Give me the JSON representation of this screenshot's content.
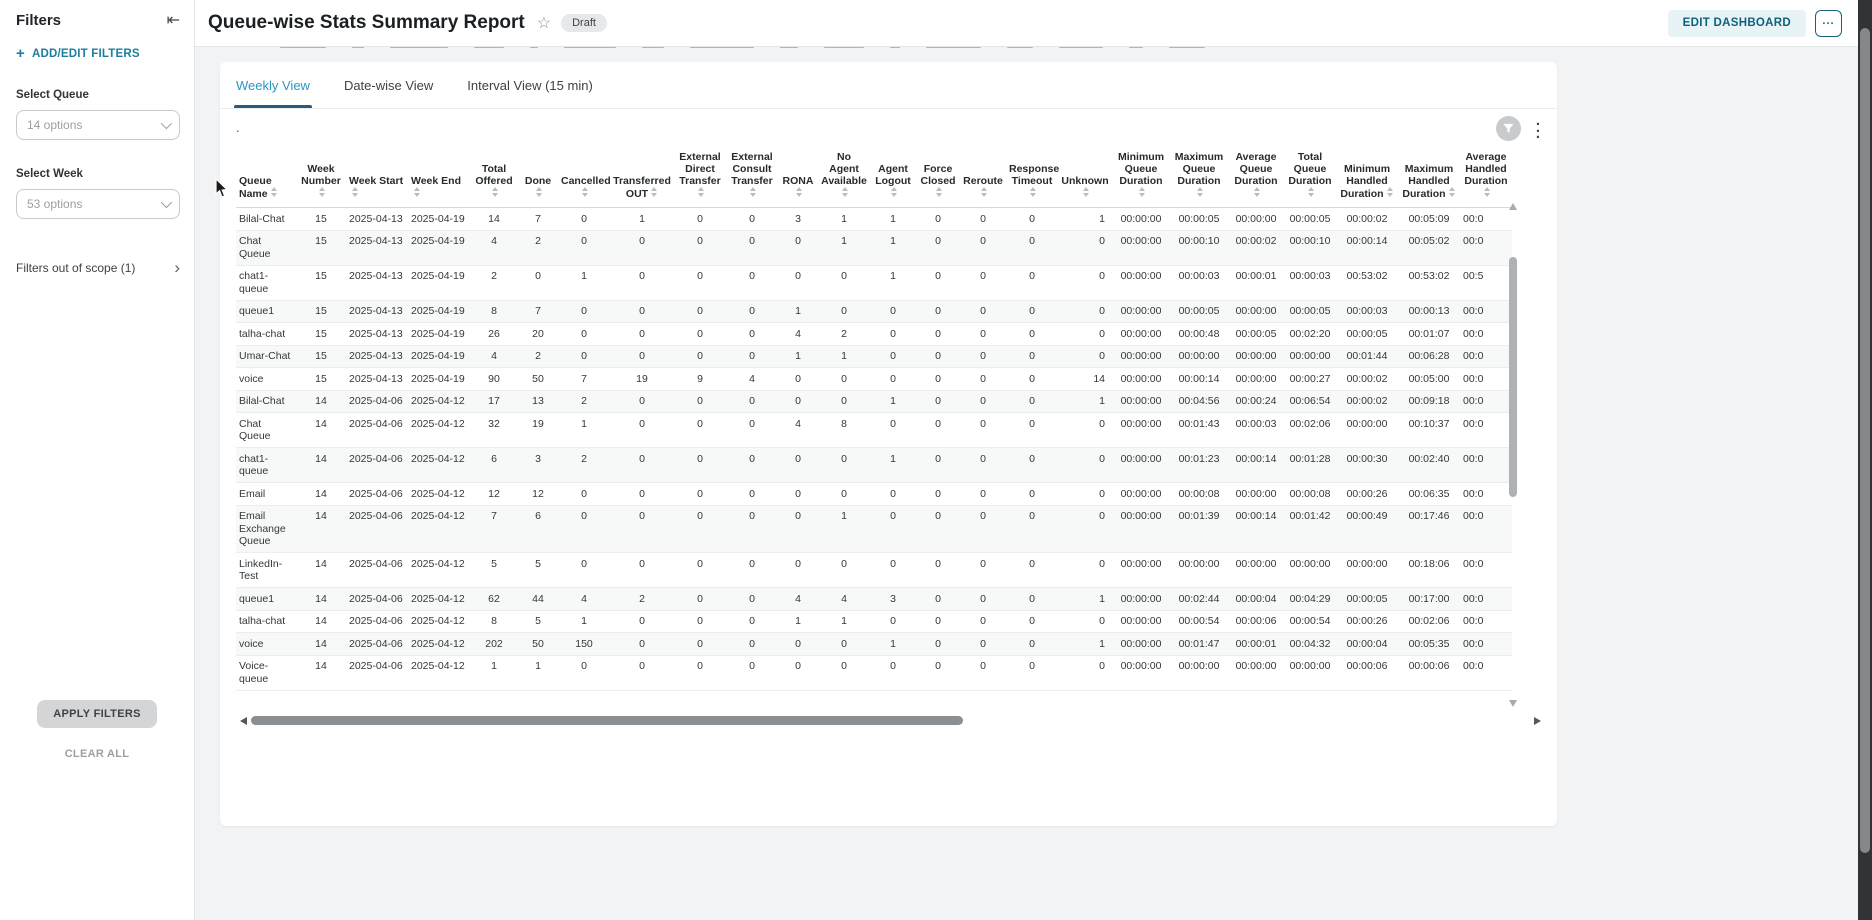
{
  "sidebar": {
    "title": "Filters",
    "add_edit_filters": "ADD/EDIT FILTERS",
    "select_queue_label": "Select Queue",
    "select_queue_value": "14 options",
    "select_week_label": "Select Week",
    "select_week_value": "53 options",
    "out_of_scope": "Filters out of scope (1)",
    "apply": "APPLY FILTERS",
    "clear": "CLEAR ALL"
  },
  "header": {
    "title": "Queue-wise Stats Summary Report",
    "badge": "Draft",
    "edit_button": "EDIT DASHBOARD"
  },
  "tabs": [
    {
      "label": "Weekly View",
      "active": true
    },
    {
      "label": "Date-wise View",
      "active": false
    },
    {
      "label": "Interval View (15 min)",
      "active": false
    }
  ],
  "card": {
    "dot": "."
  },
  "colors": {
    "accent_teal": "#1b7e9f",
    "active_tab": "#2a96c4",
    "active_tab_underline": "#2b5a80",
    "edit_button_bg": "#e8f3f6",
    "edit_button_text": "#0e617c",
    "badge_bg": "#e6e8e9"
  },
  "table": {
    "columns": [
      "Queue Name",
      "Week Number",
      "Week Start",
      "Week End",
      "Total Offered",
      "Done",
      "Cancelled",
      "Transferred OUT",
      "External Direct Transfer",
      "External Consult Transfer",
      "RONA",
      "No Agent Available",
      "Agent Logout",
      "Force Closed",
      "Reroute",
      "Response Timeout",
      "Unknown",
      "Minimum Queue Duration",
      "Maximum Queue Duration",
      "Average Queue Duration",
      "Total Queue Duration",
      "Minimum Handled Duration",
      "Maximum Handled Duration",
      "Average Handled Duration"
    ],
    "rows": [
      [
        "Bilal-Chat",
        15,
        "2025-04-13",
        "2025-04-19",
        14,
        7,
        0,
        1,
        0,
        0,
        3,
        1,
        1,
        0,
        0,
        0,
        1,
        "00:00:00",
        "00:00:05",
        "00:00:00",
        "00:00:05",
        "00:00:02",
        "00:05:09",
        "00:0"
      ],
      [
        "Chat Queue",
        15,
        "2025-04-13",
        "2025-04-19",
        4,
        2,
        0,
        0,
        0,
        0,
        0,
        1,
        1,
        0,
        0,
        0,
        0,
        "00:00:00",
        "00:00:10",
        "00:00:02",
        "00:00:10",
        "00:00:14",
        "00:05:02",
        "00:0"
      ],
      [
        "chat1-queue",
        15,
        "2025-04-13",
        "2025-04-19",
        2,
        0,
        1,
        0,
        0,
        0,
        0,
        0,
        1,
        0,
        0,
        0,
        0,
        "00:00:00",
        "00:00:03",
        "00:00:01",
        "00:00:03",
        "00:53:02",
        "00:53:02",
        "00:5"
      ],
      [
        "queue1",
        15,
        "2025-04-13",
        "2025-04-19",
        8,
        7,
        0,
        0,
        0,
        0,
        1,
        0,
        0,
        0,
        0,
        0,
        0,
        "00:00:00",
        "00:00:05",
        "00:00:00",
        "00:00:05",
        "00:00:03",
        "00:00:13",
        "00:0"
      ],
      [
        "talha-chat",
        15,
        "2025-04-13",
        "2025-04-19",
        26,
        20,
        0,
        0,
        0,
        0,
        4,
        2,
        0,
        0,
        0,
        0,
        0,
        "00:00:00",
        "00:00:48",
        "00:00:05",
        "00:02:20",
        "00:00:05",
        "00:01:07",
        "00:0"
      ],
      [
        "Umar-Chat",
        15,
        "2025-04-13",
        "2025-04-19",
        4,
        2,
        0,
        0,
        0,
        0,
        1,
        1,
        0,
        0,
        0,
        0,
        0,
        "00:00:00",
        "00:00:00",
        "00:00:00",
        "00:00:00",
        "00:01:44",
        "00:06:28",
        "00:0"
      ],
      [
        "voice",
        15,
        "2025-04-13",
        "2025-04-19",
        90,
        50,
        7,
        19,
        9,
        4,
        0,
        0,
        0,
        0,
        0,
        0,
        14,
        "00:00:00",
        "00:00:14",
        "00:00:00",
        "00:00:27",
        "00:00:02",
        "00:05:00",
        "00:0"
      ],
      [
        "Bilal-Chat",
        14,
        "2025-04-06",
        "2025-04-12",
        17,
        13,
        2,
        0,
        0,
        0,
        0,
        0,
        1,
        0,
        0,
        0,
        1,
        "00:00:00",
        "00:04:56",
        "00:00:24",
        "00:06:54",
        "00:00:02",
        "00:09:18",
        "00:0"
      ],
      [
        "Chat Queue",
        14,
        "2025-04-06",
        "2025-04-12",
        32,
        19,
        1,
        0,
        0,
        0,
        4,
        8,
        0,
        0,
        0,
        0,
        0,
        "00:00:00",
        "00:01:43",
        "00:00:03",
        "00:02:06",
        "00:00:00",
        "00:10:37",
        "00:0"
      ],
      [
        "chat1-queue",
        14,
        "2025-04-06",
        "2025-04-12",
        6,
        3,
        2,
        0,
        0,
        0,
        0,
        0,
        1,
        0,
        0,
        0,
        0,
        "00:00:00",
        "00:01:23",
        "00:00:14",
        "00:01:28",
        "00:00:30",
        "00:02:40",
        "00:0"
      ],
      [
        "Email",
        14,
        "2025-04-06",
        "2025-04-12",
        12,
        12,
        0,
        0,
        0,
        0,
        0,
        0,
        0,
        0,
        0,
        0,
        0,
        "00:00:00",
        "00:00:08",
        "00:00:00",
        "00:00:08",
        "00:00:26",
        "00:06:35",
        "00:0"
      ],
      [
        "Email Exchange Queue",
        14,
        "2025-04-06",
        "2025-04-12",
        7,
        6,
        0,
        0,
        0,
        0,
        0,
        1,
        0,
        0,
        0,
        0,
        0,
        "00:00:00",
        "00:01:39",
        "00:00:14",
        "00:01:42",
        "00:00:49",
        "00:17:46",
        "00:0"
      ],
      [
        "LinkedIn-Test",
        14,
        "2025-04-06",
        "2025-04-12",
        5,
        5,
        0,
        0,
        0,
        0,
        0,
        0,
        0,
        0,
        0,
        0,
        0,
        "00:00:00",
        "00:00:00",
        "00:00:00",
        "00:00:00",
        "00:00:00",
        "00:18:06",
        "00:0"
      ],
      [
        "queue1",
        14,
        "2025-04-06",
        "2025-04-12",
        62,
        44,
        4,
        2,
        0,
        0,
        4,
        4,
        3,
        0,
        0,
        0,
        1,
        "00:00:00",
        "00:02:44",
        "00:00:04",
        "00:04:29",
        "00:00:05",
        "00:17:00",
        "00:0"
      ],
      [
        "talha-chat",
        14,
        "2025-04-06",
        "2025-04-12",
        8,
        5,
        1,
        0,
        0,
        0,
        1,
        1,
        0,
        0,
        0,
        0,
        0,
        "00:00:00",
        "00:00:54",
        "00:00:06",
        "00:00:54",
        "00:00:26",
        "00:02:06",
        "00:0"
      ],
      [
        "voice",
        14,
        "2025-04-06",
        "2025-04-12",
        202,
        50,
        150,
        0,
        0,
        0,
        0,
        0,
        1,
        0,
        0,
        0,
        1,
        "00:00:00",
        "00:01:47",
        "00:00:01",
        "00:04:32",
        "00:00:04",
        "00:05:35",
        "00:0"
      ],
      [
        "Voice-queue",
        14,
        "2025-04-06",
        "2025-04-12",
        1,
        1,
        0,
        0,
        0,
        0,
        0,
        0,
        0,
        0,
        0,
        0,
        0,
        "00:00:00",
        "00:00:00",
        "00:00:00",
        "00:00:00",
        "00:00:06",
        "00:00:06",
        "00:0"
      ]
    ]
  }
}
